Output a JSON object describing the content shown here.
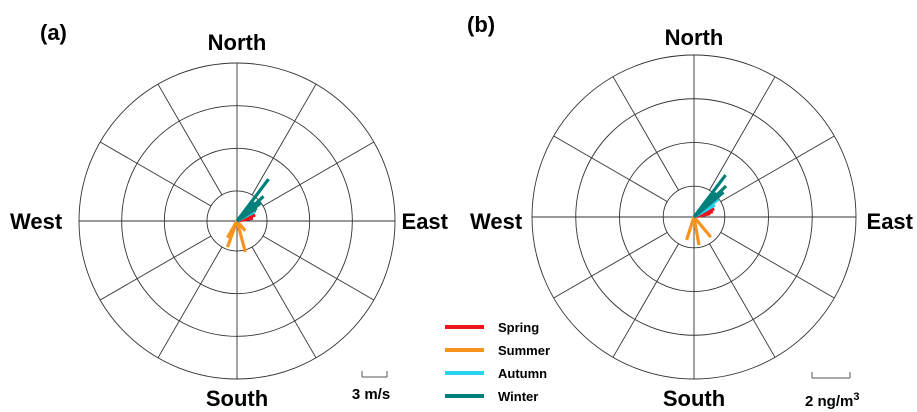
{
  "chart_data": [
    {
      "type": "polar",
      "panel_label": "(a)",
      "directions": {
        "north": "North",
        "south": "South",
        "east": "East",
        "west": "West"
      },
      "scale_bar_label": "3 m/s",
      "grid": {
        "rings": 4,
        "spokes_deg": 30
      },
      "series": [
        {
          "name": "Spring",
          "color": "#e8151b",
          "vectors": [
            {
              "bearing_deg": 72,
              "magnitude": 0.45
            },
            {
              "bearing_deg": 60,
              "magnitude": 0.5
            },
            {
              "bearing_deg": 80,
              "magnitude": 0.38
            },
            {
              "bearing_deg": 55,
              "magnitude": 0.55
            },
            {
              "bearing_deg": 66,
              "magnitude": 0.42
            }
          ]
        },
        {
          "name": "Summer",
          "color": "#f7931e",
          "vectors": [
            {
              "bearing_deg": 200,
              "magnitude": 0.65
            },
            {
              "bearing_deg": 165,
              "magnitude": 0.75
            },
            {
              "bearing_deg": 140,
              "magnitude": 0.3
            },
            {
              "bearing_deg": 210,
              "magnitude": 0.45
            }
          ]
        },
        {
          "name": "Autumn",
          "color": "#29d3f0",
          "vectors": [
            {
              "bearing_deg": 55,
              "magnitude": 0.52
            },
            {
              "bearing_deg": 62,
              "magnitude": 0.48
            },
            {
              "bearing_deg": 50,
              "magnitude": 0.42
            }
          ]
        },
        {
          "name": "Winter",
          "color": "#00807a",
          "vectors": [
            {
              "bearing_deg": 37,
              "magnitude": 1.23
            },
            {
              "bearing_deg": 47,
              "magnitude": 0.85
            },
            {
              "bearing_deg": 53,
              "magnitude": 0.7
            },
            {
              "bearing_deg": 42,
              "magnitude": 0.6
            },
            {
              "bearing_deg": 57,
              "magnitude": 0.55
            }
          ]
        }
      ]
    },
    {
      "type": "polar",
      "panel_label": "(b)",
      "directions": {
        "north": "North",
        "south": "South",
        "east": "East",
        "west": "West"
      },
      "scale_bar_label": "2 ng/m",
      "scale_bar_sup": "3",
      "grid": {
        "rings": 4,
        "spokes_deg": 30
      },
      "series": [
        {
          "name": "Spring",
          "color": "#e8151b",
          "vectors": [
            {
              "bearing_deg": 58,
              "magnitude": 0.55
            },
            {
              "bearing_deg": 68,
              "magnitude": 0.5
            },
            {
              "bearing_deg": 74,
              "magnitude": 0.45
            },
            {
              "bearing_deg": 78,
              "magnitude": 0.38
            },
            {
              "bearing_deg": 62,
              "magnitude": 0.42
            }
          ]
        },
        {
          "name": "Summer",
          "color": "#f7931e",
          "vectors": [
            {
              "bearing_deg": 140,
              "magnitude": 0.6
            },
            {
              "bearing_deg": 170,
              "magnitude": 0.65
            },
            {
              "bearing_deg": 198,
              "magnitude": 0.55
            }
          ]
        },
        {
          "name": "Autumn",
          "color": "#29d3f0",
          "vectors": [
            {
              "bearing_deg": 54,
              "magnitude": 0.7
            },
            {
              "bearing_deg": 50,
              "magnitude": 0.6
            },
            {
              "bearing_deg": 60,
              "magnitude": 0.55
            }
          ]
        },
        {
          "name": "Winter",
          "color": "#00807a",
          "vectors": [
            {
              "bearing_deg": 37,
              "magnitude": 1.2
            },
            {
              "bearing_deg": 46,
              "magnitude": 1.02
            },
            {
              "bearing_deg": 50,
              "magnitude": 0.88
            },
            {
              "bearing_deg": 43,
              "magnitude": 0.75
            }
          ]
        }
      ]
    }
  ],
  "legend": [
    {
      "label": "Spring",
      "color": "#e8151b"
    },
    {
      "label": "Summer",
      "color": "#f7931e"
    },
    {
      "label": "Autumn",
      "color": "#29d3f0"
    },
    {
      "label": "Winter",
      "color": "#00807a"
    }
  ]
}
